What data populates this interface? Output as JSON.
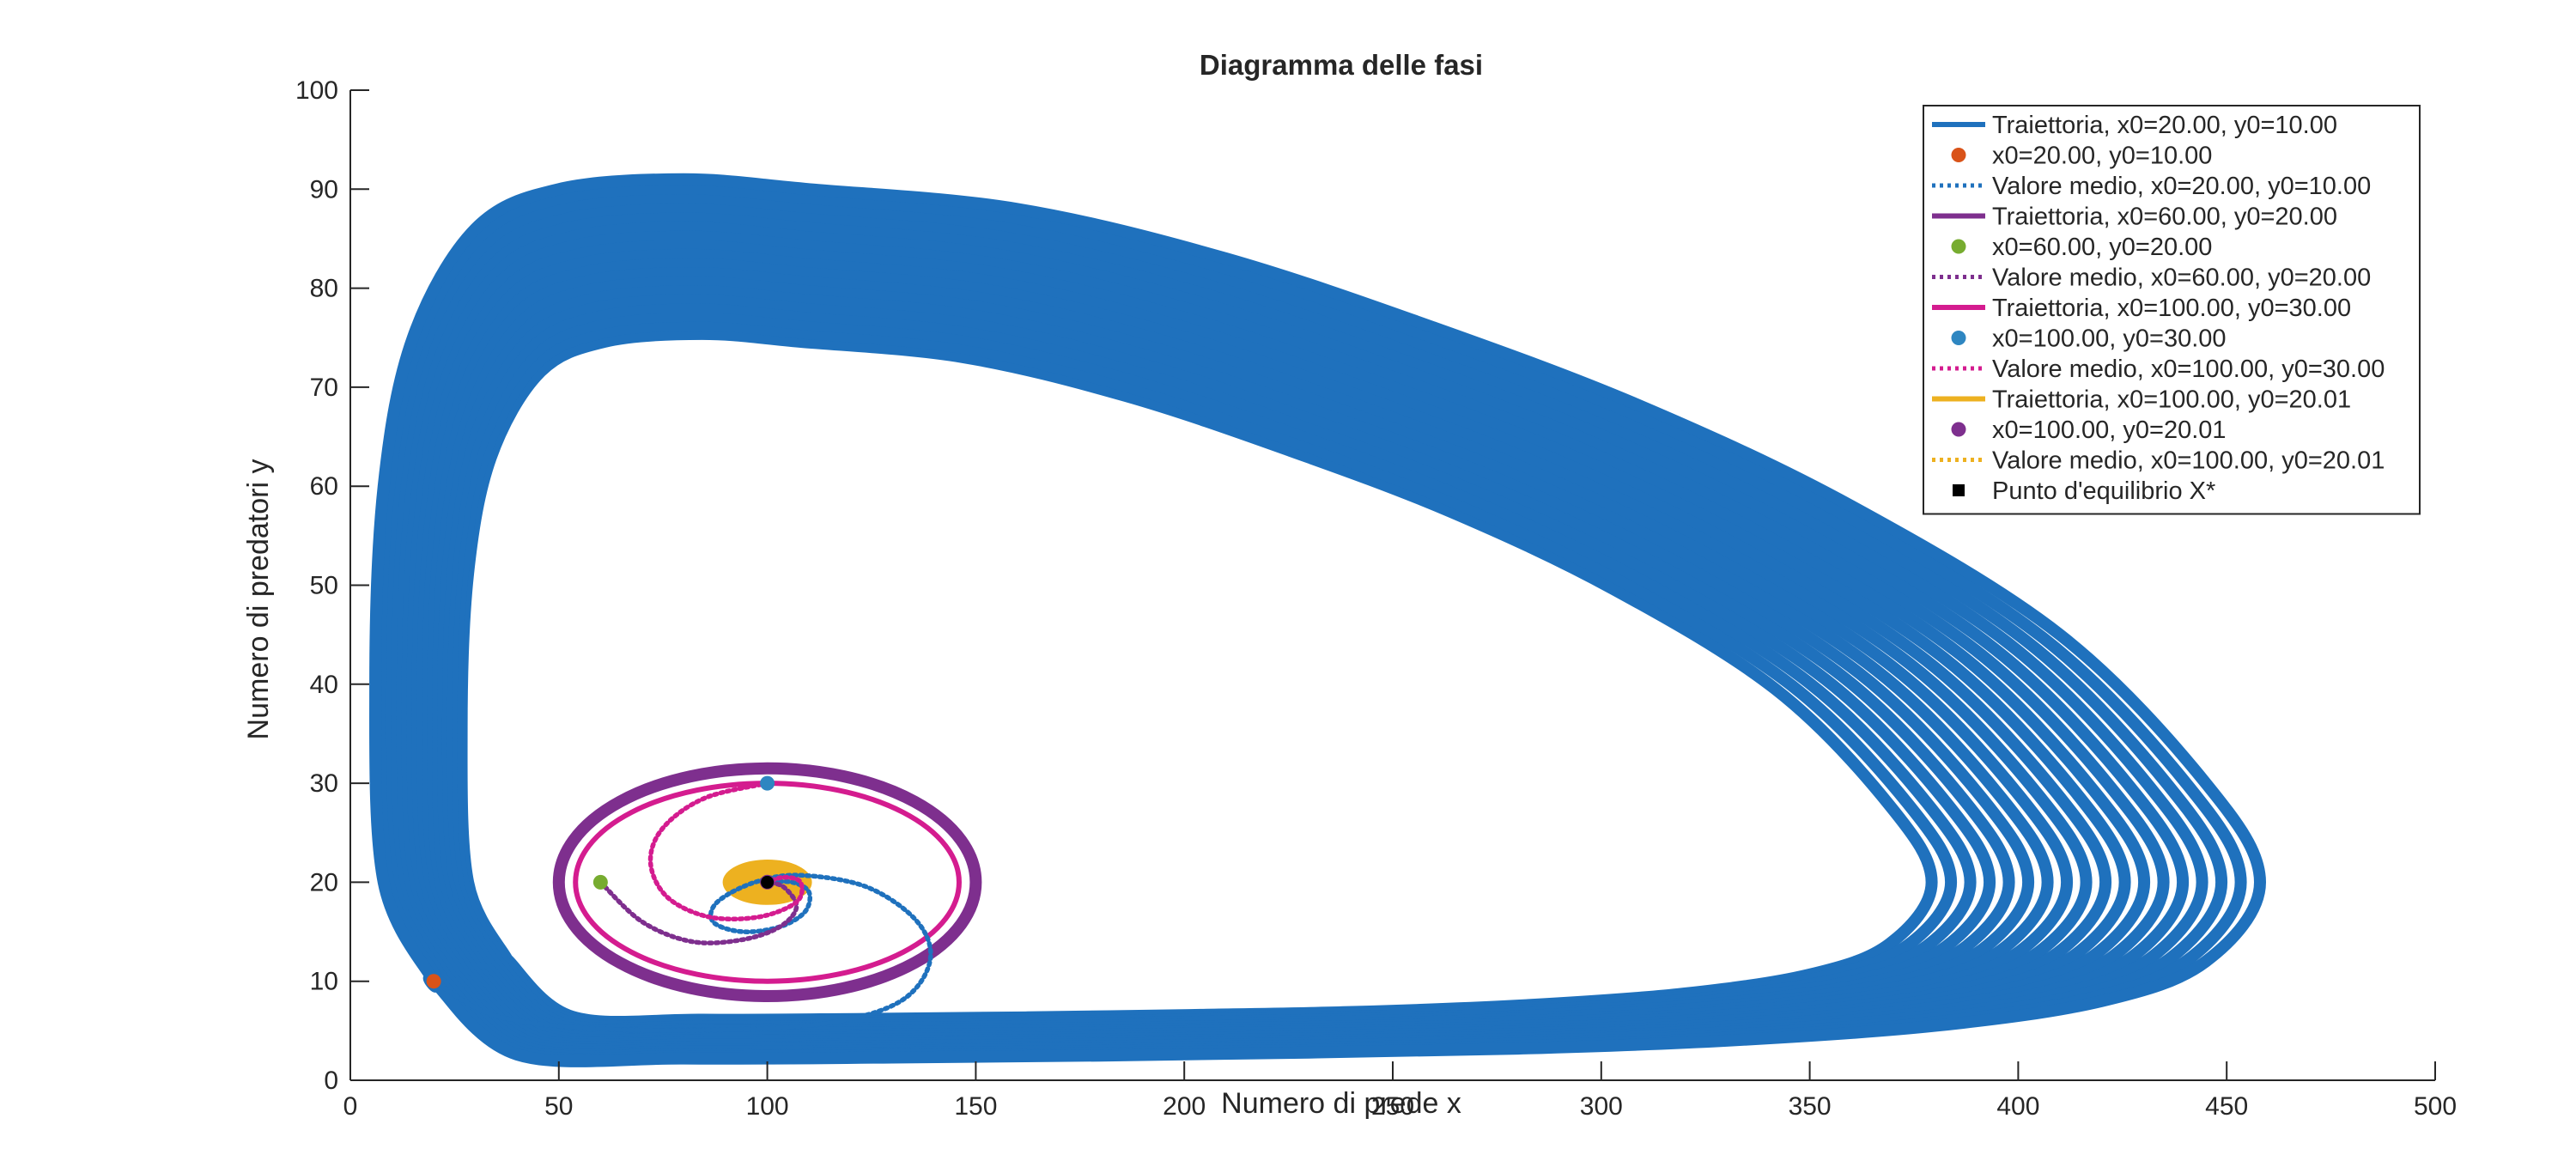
{
  "chart_data": {
    "type": "line",
    "title": "Diagramma delle fasi",
    "xlabel": "Numero di prede x",
    "ylabel": "Numero di predatori y",
    "xlim": [
      0,
      500
    ],
    "ylim": [
      0,
      100
    ],
    "xticks": [
      "0",
      "50",
      "100",
      "150",
      "200",
      "250",
      "300",
      "350",
      "400",
      "450",
      "500"
    ],
    "yticks": [
      "0",
      "10",
      "20",
      "30",
      "40",
      "50",
      "60",
      "70",
      "80",
      "90",
      "100"
    ],
    "grid": false,
    "legend_position": "top-right",
    "colors": {
      "blue": "#0072BD",
      "orange": "#D95319",
      "purple": "#7E2F8E",
      "green": "#77AC30",
      "magenta": "#D41C8F",
      "lightblue": "#2E86C1",
      "yellow": "#EDB120",
      "black": "#000000"
    },
    "series": [
      {
        "name": "Traiettoria, x0=20.00, y0=10.00",
        "kind": "trajectory",
        "color": "#1F71BD",
        "x": [
          20,
          8,
          6,
          8,
          15,
          30,
          50,
          80,
          110,
          160,
          210,
          260,
          310,
          360,
          410,
          445,
          458,
          445,
          420,
          380,
          330,
          280,
          230,
          180,
          130,
          80,
          40,
          20
        ],
        "y": [
          10,
          20,
          40,
          60,
          75,
          86,
          90,
          91,
          90,
          88,
          83,
          76,
          68,
          58,
          45,
          30,
          20,
          12,
          8,
          5.5,
          4,
          3.2,
          2.8,
          2.5,
          2.3,
          2.2,
          2.6,
          10
        ],
        "band_scale": 0.78,
        "band_layers": 18
      },
      {
        "name": "x0=20.00, y0=10.00",
        "kind": "marker",
        "color": "#D95319",
        "x": [
          20
        ],
        "y": [
          10
        ]
      },
      {
        "name": "Valore medio, x0=20.00, y0=10.00",
        "kind": "mean",
        "color": "#1F71BD",
        "x": [
          20,
          35,
          60,
          90,
          115,
          132,
          139,
          136,
          124,
          108,
          97,
          88,
          87,
          94,
          103,
          109,
          110,
          106,
          100
        ],
        "y": [
          10,
          6.5,
          5.2,
          5.1,
          5.8,
          8,
          12,
          16,
          19.5,
          20.7,
          20,
          18,
          16,
          15,
          15.5,
          17,
          19,
          20,
          20
        ]
      },
      {
        "name": "Traiettoria, x0=60.00, y0=20.00",
        "kind": "ellipse",
        "color": "#7E2F8E",
        "cx": 100,
        "cy": 20,
        "rx": 50,
        "ry": 11.5,
        "width": 14
      },
      {
        "name": "x0=60.00, y0=20.00",
        "kind": "marker",
        "color": "#77AC30",
        "x": [
          60
        ],
        "y": [
          20
        ]
      },
      {
        "name": "Valore medio, x0=60.00, y0=20.00",
        "kind": "mean",
        "color": "#7E2F8E",
        "x": [
          60,
          70,
          82,
          94,
          103,
          107,
          104,
          100
        ],
        "y": [
          20,
          16,
          14,
          14.2,
          15.5,
          17.5,
          19.5,
          20
        ]
      },
      {
        "name": "Traiettoria, x0=100.00, y0=30.00",
        "kind": "ellipse",
        "color": "#D41C8F",
        "cx": 100,
        "cy": 20,
        "rx": 46,
        "ry": 10,
        "width": 6
      },
      {
        "name": "x0=100.00, y0=30.00",
        "kind": "marker",
        "color": "#2E86C1",
        "x": [
          100
        ],
        "y": [
          30
        ]
      },
      {
        "name": "Valore medio, x0=100.00, y0=30.00",
        "kind": "mean",
        "color": "#D41C8F",
        "x": [
          100,
          85,
          75,
          72,
          76,
          86,
          98,
          107,
          108,
          104,
          100
        ],
        "y": [
          30,
          28.5,
          25.5,
          22,
          18.5,
          16.5,
          16.5,
          18,
          20,
          20.5,
          20
        ]
      },
      {
        "name": "Traiettoria, x0=100.00, y0=20.01",
        "kind": "ellipse",
        "color": "#EDB120",
        "cx": 100,
        "cy": 20,
        "rx": 10.5,
        "ry": 2.2,
        "width": 2,
        "filled": true
      },
      {
        "name": "x0=100.00, y0=20.01",
        "kind": "marker",
        "color": "#7E2F8E",
        "x": [
          100
        ],
        "y": [
          20.01
        ]
      },
      {
        "name": "Valore medio, x0=100.00, y0=20.01",
        "kind": "mean",
        "color": "#EDB120",
        "x": [
          100,
          100
        ],
        "y": [
          20,
          20.01
        ]
      },
      {
        "name": "Punto  d'equilibrio  X*",
        "kind": "equilibrium",
        "color": "#000000",
        "x": [
          100
        ],
        "y": [
          20
        ]
      }
    ]
  }
}
